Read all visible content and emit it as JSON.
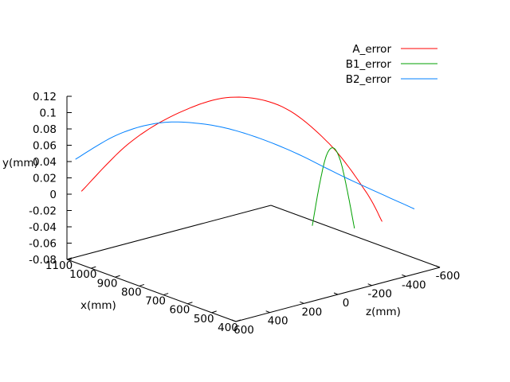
{
  "chart_data": {
    "type": "line",
    "projection": "3d",
    "xlabel": "x(mm)",
    "ylabel": "y(mm)",
    "zlabel": "z(mm)",
    "xlim": [
      400,
      1100
    ],
    "ylim": [
      -0.08,
      0.12
    ],
    "zlim": [
      -600,
      600
    ],
    "x_ticks": [
      "400",
      "500",
      "600",
      "700",
      "800",
      "900",
      "1000",
      "1100"
    ],
    "y_ticks": [
      "-0.08",
      "-0.06",
      "-0.04",
      "-0.02",
      "0",
      "0.02",
      "0.04",
      "0.06",
      "0.08",
      "0.1",
      "0.12"
    ],
    "z_ticks": [
      "600",
      "400",
      "200",
      "0",
      "-200",
      "-400",
      "-600"
    ],
    "legend_position": "top-right",
    "series": [
      {
        "name": "A_error",
        "color": "#ff0000",
        "points": [
          {
            "x": 1040,
            "z": 600,
            "y": 0.01
          },
          {
            "x": 950,
            "z": 450,
            "y": 0.07
          },
          {
            "x": 850,
            "z": 300,
            "y": 0.11
          },
          {
            "x": 740,
            "z": 150,
            "y": 0.133
          },
          {
            "x": 630,
            "z": 0,
            "y": 0.125
          },
          {
            "x": 520,
            "z": -120,
            "y": 0.085
          },
          {
            "x": 440,
            "z": -220,
            "y": 0.03
          },
          {
            "x": 400,
            "z": -260,
            "y": -0.005
          }
        ]
      },
      {
        "name": "B1_error",
        "color": "#00a000",
        "points": [
          {
            "x": 520,
            "z": -20,
            "y": -0.01
          },
          {
            "x": 505,
            "z": -40,
            "y": 0.04
          },
          {
            "x": 490,
            "z": -60,
            "y": 0.077
          },
          {
            "x": 475,
            "z": -80,
            "y": 0.087
          },
          {
            "x": 460,
            "z": -100,
            "y": 0.072
          },
          {
            "x": 445,
            "z": -120,
            "y": 0.035
          },
          {
            "x": 430,
            "z": -140,
            "y": -0.01
          }
        ]
      },
      {
        "name": "B2_error",
        "color": "#0080ff",
        "points": [
          {
            "x": 1100,
            "z": 550,
            "y": 0.04
          },
          {
            "x": 1000,
            "z": 450,
            "y": 0.075
          },
          {
            "x": 900,
            "z": 350,
            "y": 0.095
          },
          {
            "x": 800,
            "z": 250,
            "y": 0.1
          },
          {
            "x": 700,
            "z": 150,
            "y": 0.095
          },
          {
            "x": 600,
            "z": 0,
            "y": 0.075
          },
          {
            "x": 500,
            "z": -200,
            "y": 0.04
          },
          {
            "x": 400,
            "z": -450,
            "y": 0.0
          }
        ]
      }
    ]
  }
}
